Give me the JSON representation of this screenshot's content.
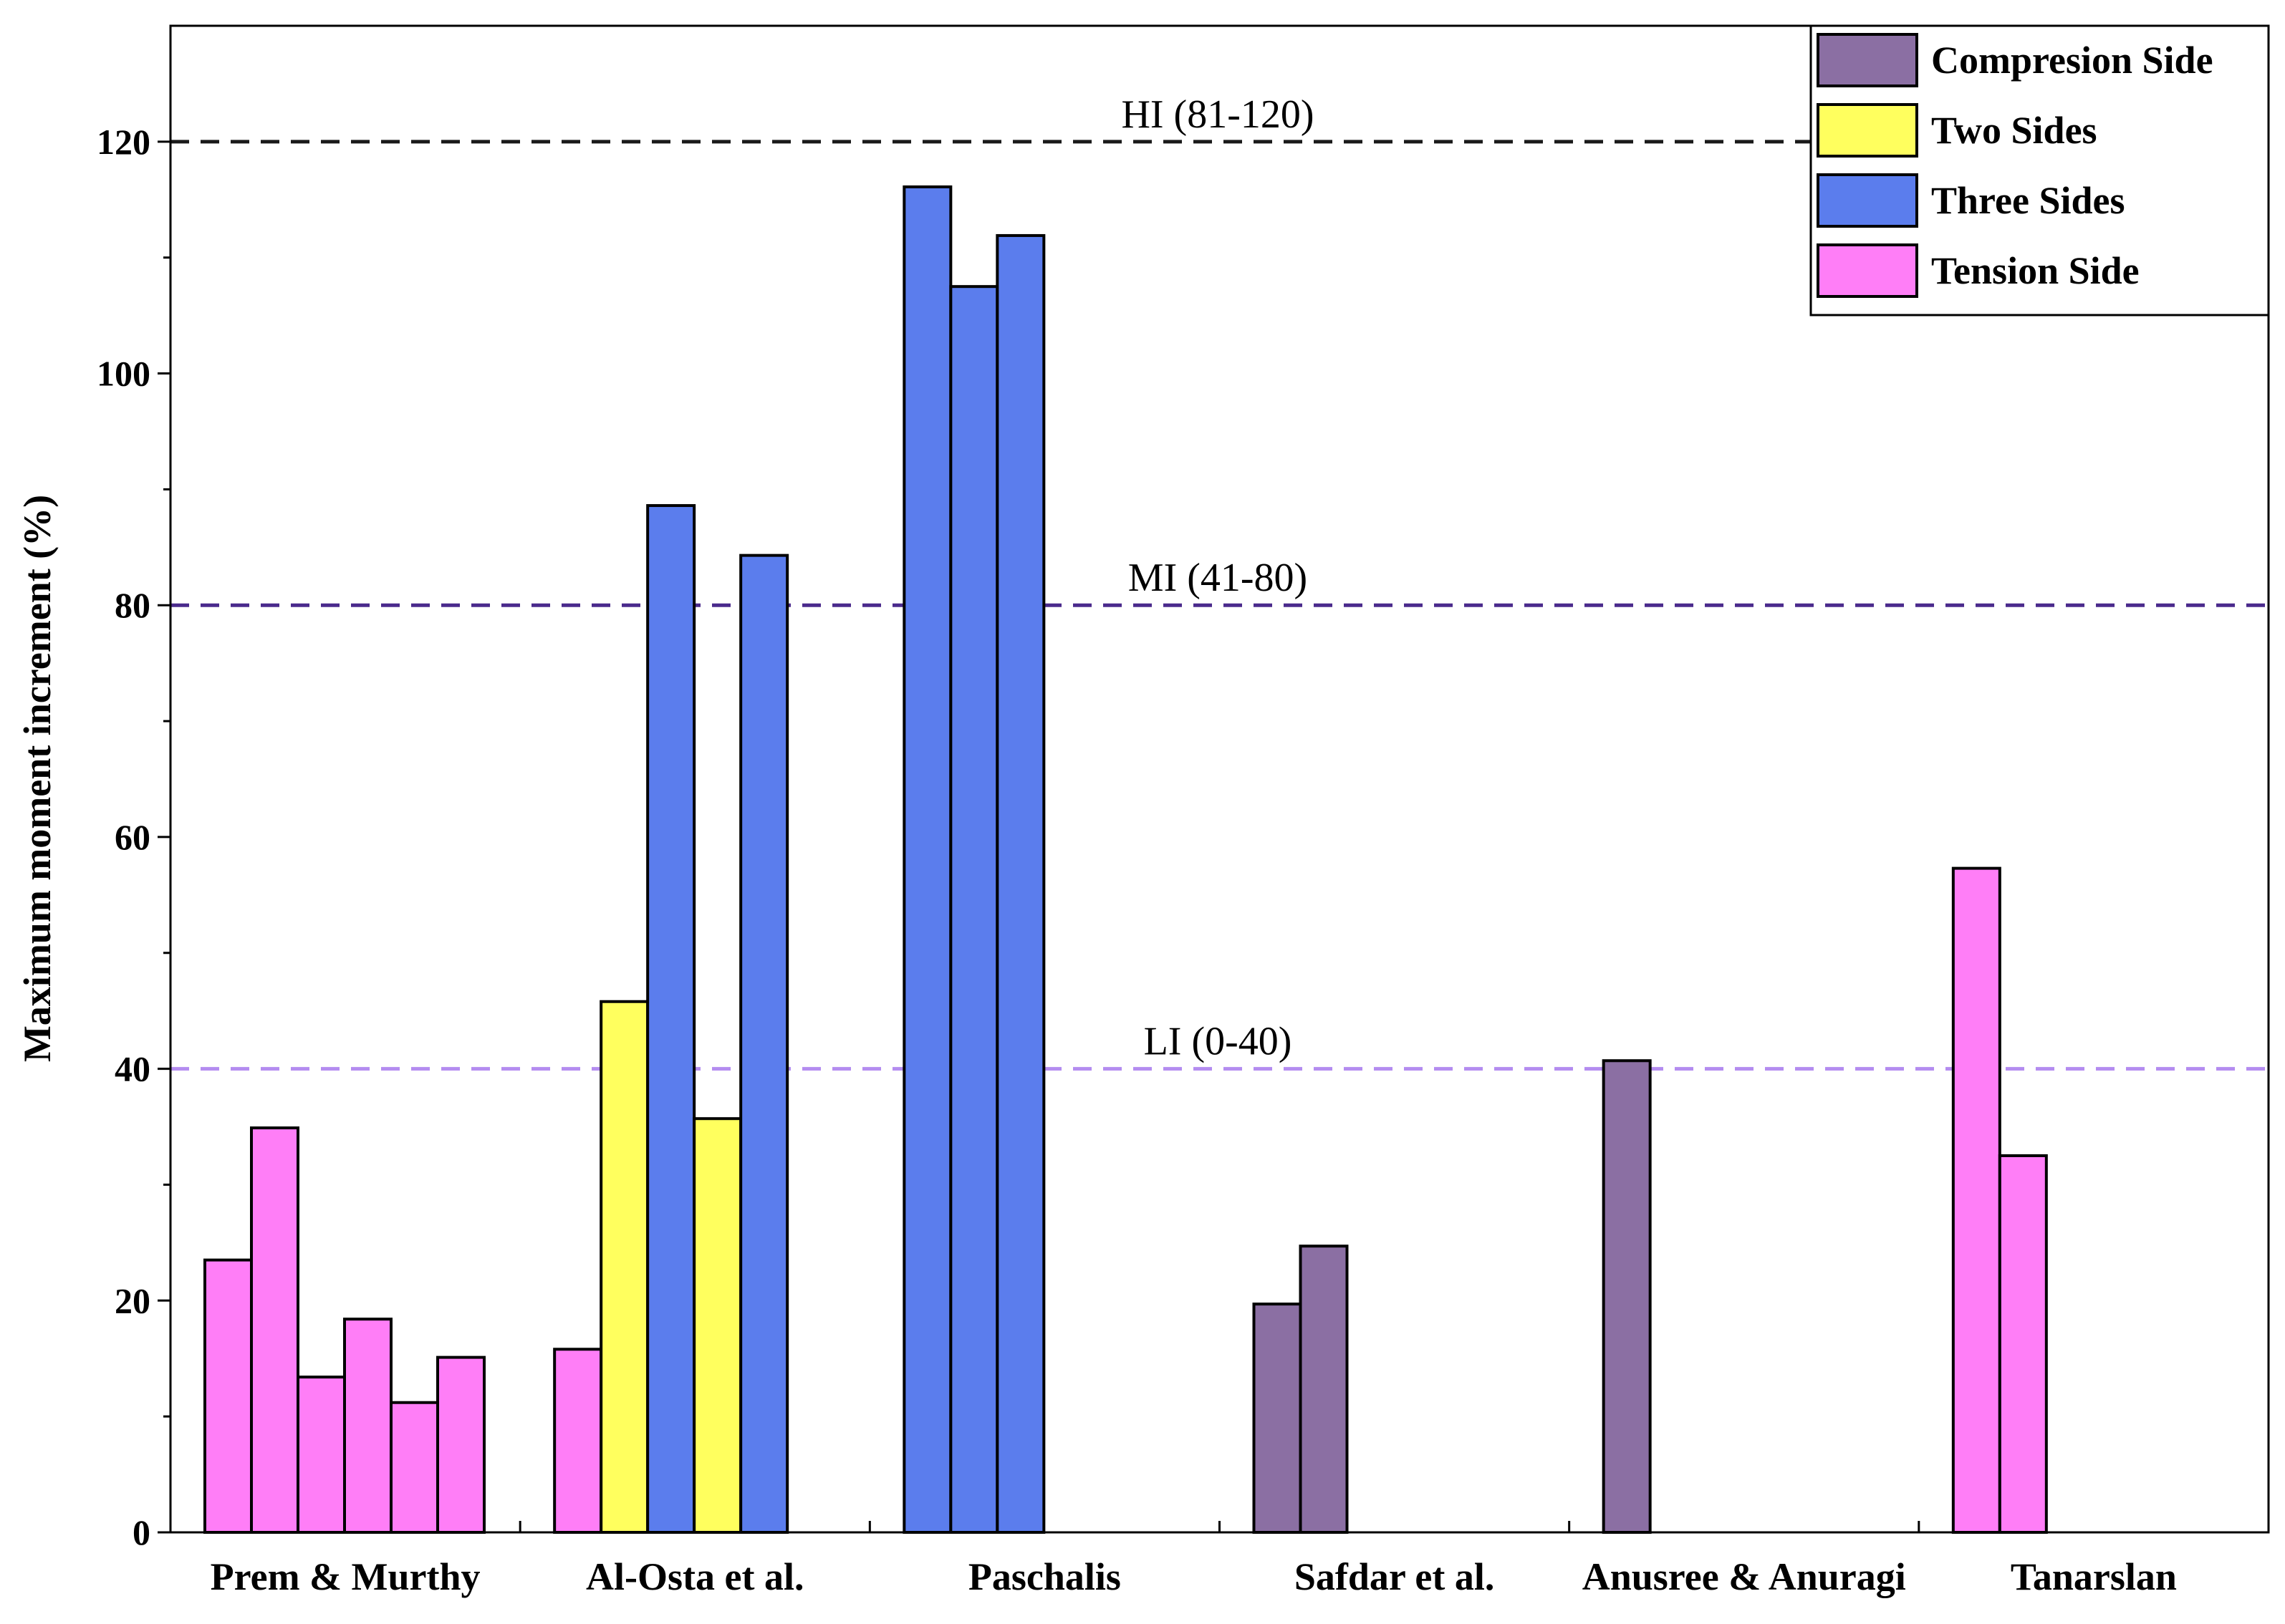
{
  "chart_data": {
    "type": "bar",
    "title": "",
    "xlabel": "",
    "ylabel": "Maximum moment increment (%)",
    "ylim": [
      0,
      130
    ],
    "yticks": [
      0,
      20,
      40,
      60,
      80,
      100,
      120
    ],
    "grid": false,
    "legend_position": "top-right",
    "categories": [
      "Prem & Murthy",
      "Al-Osta et al.",
      "Paschalis",
      "Safdar et al.",
      "Anusree & Anuragi",
      "Tanarslan"
    ],
    "legend": [
      {
        "name": "Compresion Side",
        "color": "#8b6fa3"
      },
      {
        "name": "Two Sides",
        "color": "#ffff5e"
      },
      {
        "name": "Three Sides",
        "color": "#5b7ded"
      },
      {
        "name": "Tension Side",
        "color": "#ff7ef7"
      }
    ],
    "groups": [
      {
        "category": "Prem & Murthy",
        "bars": [
          {
            "series": "Tension Side",
            "value": 23.5
          },
          {
            "series": "Tension Side",
            "value": 34.9
          },
          {
            "series": "Tension Side",
            "value": 13.4
          },
          {
            "series": "Tension Side",
            "value": 18.4
          },
          {
            "series": "Tension Side",
            "value": 11.2
          },
          {
            "series": "Tension Side",
            "value": 15.1
          }
        ]
      },
      {
        "category": "Al-Osta et al.",
        "bars": [
          {
            "series": "Tension Side",
            "value": 15.8
          },
          {
            "series": "Two Sides",
            "value": 45.8
          },
          {
            "series": "Three Sides",
            "value": 88.6
          },
          {
            "series": "Two Sides",
            "value": 35.7
          },
          {
            "series": "Three Sides",
            "value": 84.3
          }
        ]
      },
      {
        "category": "Paschalis",
        "bars": [
          {
            "series": "Three Sides",
            "value": 116.1
          },
          {
            "series": "Three Sides",
            "value": 107.5
          },
          {
            "series": "Three Sides",
            "value": 111.9
          }
        ]
      },
      {
        "category": "Safdar et al.",
        "bars": [
          {
            "series": "Compresion Side",
            "value": 19.7
          },
          {
            "series": "Compresion Side",
            "value": 24.7
          }
        ]
      },
      {
        "category": "Anusree & Anuragi",
        "bars": [
          {
            "series": "Compresion Side",
            "value": 40.7
          }
        ]
      },
      {
        "category": "Tanarslan",
        "bars": [
          {
            "series": "Tension Side",
            "value": 57.3
          },
          {
            "series": "Tension Side",
            "value": 32.5
          }
        ]
      }
    ],
    "reference_lines": [
      {
        "label": "HI (81-120)",
        "value": 120,
        "color": "#1a1a1a"
      },
      {
        "label": "MI (41-80)",
        "value": 80,
        "color": "#4a2a8c"
      },
      {
        "label": "LI (0-40)",
        "value": 40,
        "color": "#b48cf0"
      }
    ]
  }
}
